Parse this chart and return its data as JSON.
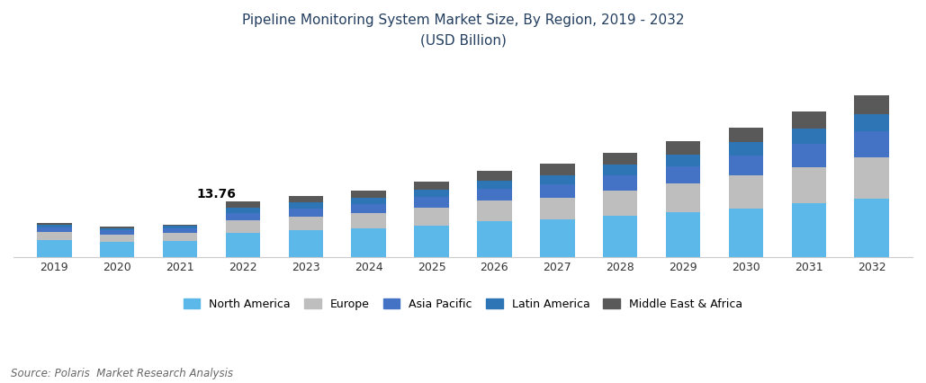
{
  "title_line1": "Pipeline Monitoring System Market Size, By Region, 2019 - 2032",
  "title_line2": "(USD Billion)",
  "years": [
    2019,
    2020,
    2021,
    2022,
    2023,
    2024,
    2025,
    2026,
    2027,
    2028,
    2029,
    2030,
    2031,
    2032
  ],
  "regions": [
    "North America",
    "Europe",
    "Asia Pacific",
    "Latin America",
    "Middle East & Africa"
  ],
  "colors": [
    "#5BB8E8",
    "#BEBEBE",
    "#4472C4",
    "#2E75B6",
    "#595959"
  ],
  "north_america": [
    4.2,
    3.8,
    4.0,
    6.0,
    6.6,
    7.1,
    7.8,
    8.8,
    9.3,
    10.3,
    11.1,
    12.1,
    13.3,
    14.6
  ],
  "europe": [
    2.0,
    1.8,
    2.0,
    3.2,
    3.5,
    3.9,
    4.5,
    5.2,
    5.5,
    6.3,
    7.1,
    8.1,
    9.1,
    10.2
  ],
  "asia_pacific": [
    1.1,
    1.0,
    1.1,
    1.8,
    2.0,
    2.2,
    2.6,
    3.0,
    3.3,
    3.8,
    4.3,
    5.0,
    5.7,
    6.4
  ],
  "latin_america": [
    0.65,
    0.55,
    0.6,
    1.26,
    1.4,
    1.55,
    1.8,
    2.0,
    2.3,
    2.6,
    2.9,
    3.3,
    3.8,
    4.3
  ],
  "middle_east_africa": [
    0.4,
    0.35,
    0.4,
    1.5,
    1.65,
    1.8,
    2.1,
    2.4,
    2.7,
    2.9,
    3.3,
    3.7,
    4.2,
    4.8
  ],
  "annotation_year_idx": 3,
  "annotation_text": "13.76",
  "source_text": "Source: Polaris  Market Research Analysis",
  "bar_width": 0.55,
  "title_color": "#243F60",
  "source_color": "#666666",
  "background_color": "#FFFFFF"
}
